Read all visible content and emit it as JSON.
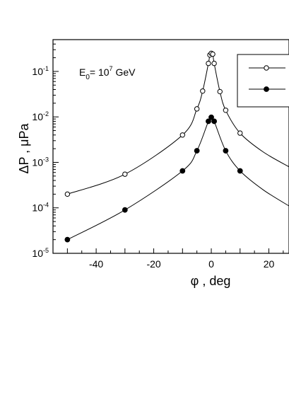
{
  "chart_data": {
    "type": "scatter",
    "title": "",
    "xlabel": "φ , deg",
    "ylabel": "ΔP , μPa",
    "xlim": [
      -55,
      27
    ],
    "ylim": [
      1e-05,
      0.5
    ],
    "yscale": "log",
    "grid": false,
    "legend_placement": "top-right",
    "annotation": {
      "main": "E",
      "sub": "0",
      "mid": "= 10",
      "sup": "7",
      "end": " GeV"
    },
    "x_ticks": [
      {
        "value": -40,
        "label": "-40"
      },
      {
        "value": -20,
        "label": "-20"
      },
      {
        "value": 0,
        "label": "0"
      },
      {
        "value": 20,
        "label": "20"
      }
    ],
    "y_ticks": [
      {
        "value": 0.1,
        "base": "10",
        "exp": "-1"
      },
      {
        "value": 0.01,
        "base": "10",
        "exp": "-2"
      },
      {
        "value": 0.001,
        "base": "10",
        "exp": "-3"
      },
      {
        "value": 0.0001,
        "base": "10",
        "exp": "-4"
      },
      {
        "value": 1e-05,
        "base": "10",
        "exp": "-5"
      }
    ],
    "series": [
      {
        "marker": "open-circle",
        "x": [
          -50,
          -30,
          -10,
          -5,
          -3,
          -1,
          -0.5,
          0,
          0.5,
          1,
          3,
          5,
          10
        ],
        "y": [
          0.0002,
          0.00055,
          0.004,
          0.015,
          0.037,
          0.15,
          0.23,
          0.25,
          0.24,
          0.15,
          0.036,
          0.014,
          0.0044
        ],
        "curve_x": [
          -50,
          -30,
          -10,
          -5,
          -3,
          -1,
          -0.5,
          0,
          0.5,
          1,
          3,
          5,
          10,
          18,
          27
        ],
        "curve_y": [
          0.0002,
          0.00055,
          0.004,
          0.015,
          0.037,
          0.15,
          0.23,
          0.25,
          0.24,
          0.15,
          0.036,
          0.014,
          0.0044,
          0.0017,
          0.0008
        ]
      },
      {
        "marker": "filled-circle",
        "x": [
          -50,
          -30,
          -10,
          -5,
          -1,
          0,
          1,
          5,
          10
        ],
        "y": [
          2e-05,
          9e-05,
          0.00065,
          0.0018,
          0.008,
          0.0098,
          0.008,
          0.0018,
          0.00065
        ],
        "curve_x": [
          -50,
          -30,
          -10,
          -5,
          -1,
          0,
          1,
          5,
          10,
          18,
          27
        ],
        "curve_y": [
          2e-05,
          9e-05,
          0.00065,
          0.0018,
          0.008,
          0.0098,
          0.008,
          0.0018,
          0.00065,
          0.00025,
          0.00011
        ]
      }
    ]
  }
}
